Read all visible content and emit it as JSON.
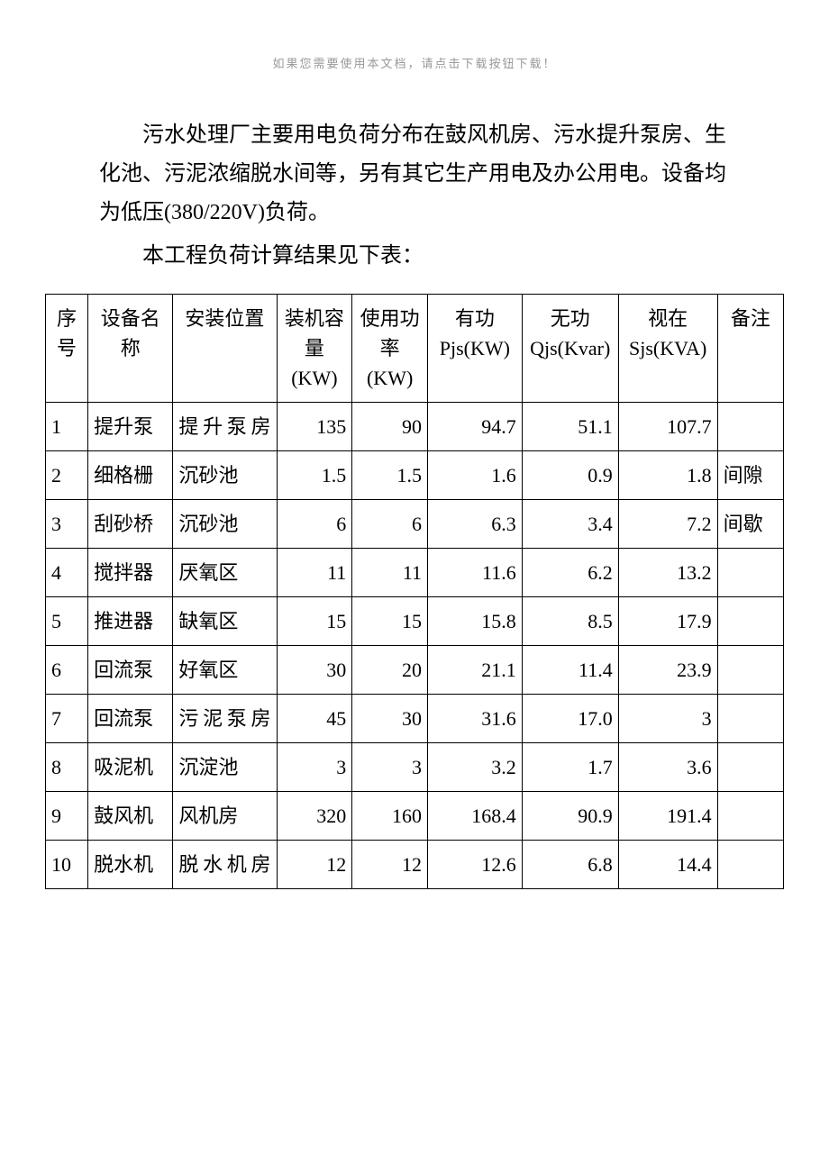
{
  "header_note": "如果您需要使用本文档，请点击下载按钮下载！",
  "paragraphs": [
    "污水处理厂主要用电负荷分布在鼓风机房、污水提升泵房、生化池、污泥浓缩脱水间等，另有其它生产用电及办公用电。设备均为低压(380/220V)负荷。",
    "本工程负荷计算结果见下表："
  ],
  "table": {
    "columns": [
      "序号",
      "设备名称",
      "安装位置",
      "装机容量(KW)",
      "使用功率(KW)",
      "有功Pjs(KW)",
      "无功Qjs(Kvar)",
      "视在Sjs(KVA)",
      "备注"
    ],
    "rows": [
      {
        "seq": "1",
        "name": "提升泵",
        "location": "提升泵房",
        "capacity": "135",
        "power": "90",
        "pjs": "94.7",
        "qjs": "51.1",
        "sjs": "107.7",
        "note": "",
        "spread": true
      },
      {
        "seq": "2",
        "name": "细格栅",
        "location": "沉砂池",
        "capacity": "1.5",
        "power": "1.5",
        "pjs": "1.6",
        "qjs": "0.9",
        "sjs": "1.8",
        "note": "间隙",
        "spread": false
      },
      {
        "seq": "3",
        "name": "刮砂桥",
        "location": "沉砂池",
        "capacity": "6",
        "power": "6",
        "pjs": "6.3",
        "qjs": "3.4",
        "sjs": "7.2",
        "note": "间歇",
        "spread": false
      },
      {
        "seq": "4",
        "name": "搅拌器",
        "location": "厌氧区",
        "capacity": "11",
        "power": "11",
        "pjs": "11.6",
        "qjs": "6.2",
        "sjs": "13.2",
        "note": "",
        "spread": false
      },
      {
        "seq": "5",
        "name": "推进器",
        "location": "缺氧区",
        "capacity": "15",
        "power": "15",
        "pjs": "15.8",
        "qjs": "8.5",
        "sjs": "17.9",
        "note": "",
        "spread": false
      },
      {
        "seq": "6",
        "name": "回流泵",
        "location": "好氧区",
        "capacity": "30",
        "power": "20",
        "pjs": "21.1",
        "qjs": "11.4",
        "sjs": "23.9",
        "note": "",
        "spread": false
      },
      {
        "seq": "7",
        "name": "回流泵",
        "location": "污泥泵房",
        "capacity": "45",
        "power": "30",
        "pjs": "31.6",
        "qjs": "17.0",
        "sjs": "3",
        "note": "",
        "spread": true
      },
      {
        "seq": "8",
        "name": "吸泥机",
        "location": "沉淀池",
        "capacity": "3",
        "power": "3",
        "pjs": "3.2",
        "qjs": "1.7",
        "sjs": "3.6",
        "note": "",
        "spread": false
      },
      {
        "seq": "9",
        "name": "鼓风机",
        "location": "风机房",
        "capacity": "320",
        "power": "160",
        "pjs": "168.4",
        "qjs": "90.9",
        "sjs": "191.4",
        "note": "",
        "spread": false
      },
      {
        "seq": "10",
        "name": "脱水机",
        "location": "脱水机房",
        "capacity": "12",
        "power": "12",
        "pjs": "12.6",
        "qjs": "6.8",
        "sjs": "14.4",
        "note": "",
        "spread": true
      }
    ]
  },
  "styling": {
    "background_color": "#ffffff",
    "text_color": "#000000",
    "header_note_color": "#999999",
    "border_color": "#000000",
    "font_family": "SimSun",
    "paragraph_fontsize": 24,
    "table_fontsize": 22,
    "header_fontsize": 13
  }
}
